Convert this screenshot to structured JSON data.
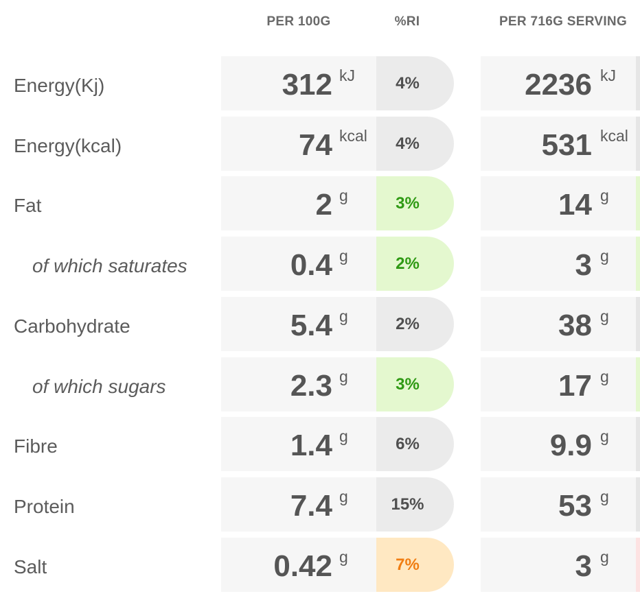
{
  "headers": {
    "per100": "PER 100G",
    "ri": "%RI",
    "serving": "PER 716G SERVING"
  },
  "colors": {
    "neutral": "#ebebeb",
    "green": "#e4f8cf",
    "amber": "#ffe8c2",
    "red": "#fde2e2"
  },
  "rows": [
    {
      "label": "Energy(Kj)",
      "sub": false,
      "per100": "312",
      "per100_unit": "kJ",
      "ri": "4%",
      "ri_level": "neutral",
      "serving": "2236",
      "serving_unit": "kJ",
      "serving_level": "neutral"
    },
    {
      "label": "Energy(kcal)",
      "sub": false,
      "per100": "74",
      "per100_unit": "kcal",
      "ri": "4%",
      "ri_level": "neutral",
      "serving": "531",
      "serving_unit": "kcal",
      "serving_level": "neutral"
    },
    {
      "label": "Fat",
      "sub": false,
      "per100": "2",
      "per100_unit": "g",
      "ri": "3%",
      "ri_level": "green",
      "serving": "14",
      "serving_unit": "g",
      "serving_level": "green"
    },
    {
      "label": "of which saturates",
      "sub": true,
      "per100": "0.4",
      "per100_unit": "g",
      "ri": "2%",
      "ri_level": "green",
      "serving": "3",
      "serving_unit": "g",
      "serving_level": "green"
    },
    {
      "label": "Carbohydrate",
      "sub": false,
      "per100": "5.4",
      "per100_unit": "g",
      "ri": "2%",
      "ri_level": "neutral",
      "serving": "38",
      "serving_unit": "g",
      "serving_level": "neutral"
    },
    {
      "label": "of which sugars",
      "sub": true,
      "per100": "2.3",
      "per100_unit": "g",
      "ri": "3%",
      "ri_level": "green",
      "serving": "17",
      "serving_unit": "g",
      "serving_level": "green"
    },
    {
      "label": "Fibre",
      "sub": false,
      "per100": "1.4",
      "per100_unit": "g",
      "ri": "6%",
      "ri_level": "neutral",
      "serving": "9.9",
      "serving_unit": "g",
      "serving_level": "neutral"
    },
    {
      "label": "Protein",
      "sub": false,
      "per100": "7.4",
      "per100_unit": "g",
      "ri": "15%",
      "ri_level": "neutral",
      "serving": "53",
      "serving_unit": "g",
      "serving_level": "neutral"
    },
    {
      "label": "Salt",
      "sub": false,
      "per100": "0.42",
      "per100_unit": "g",
      "ri": "7%",
      "ri_level": "amber",
      "serving": "3",
      "serving_unit": "g",
      "serving_level": "red"
    }
  ]
}
